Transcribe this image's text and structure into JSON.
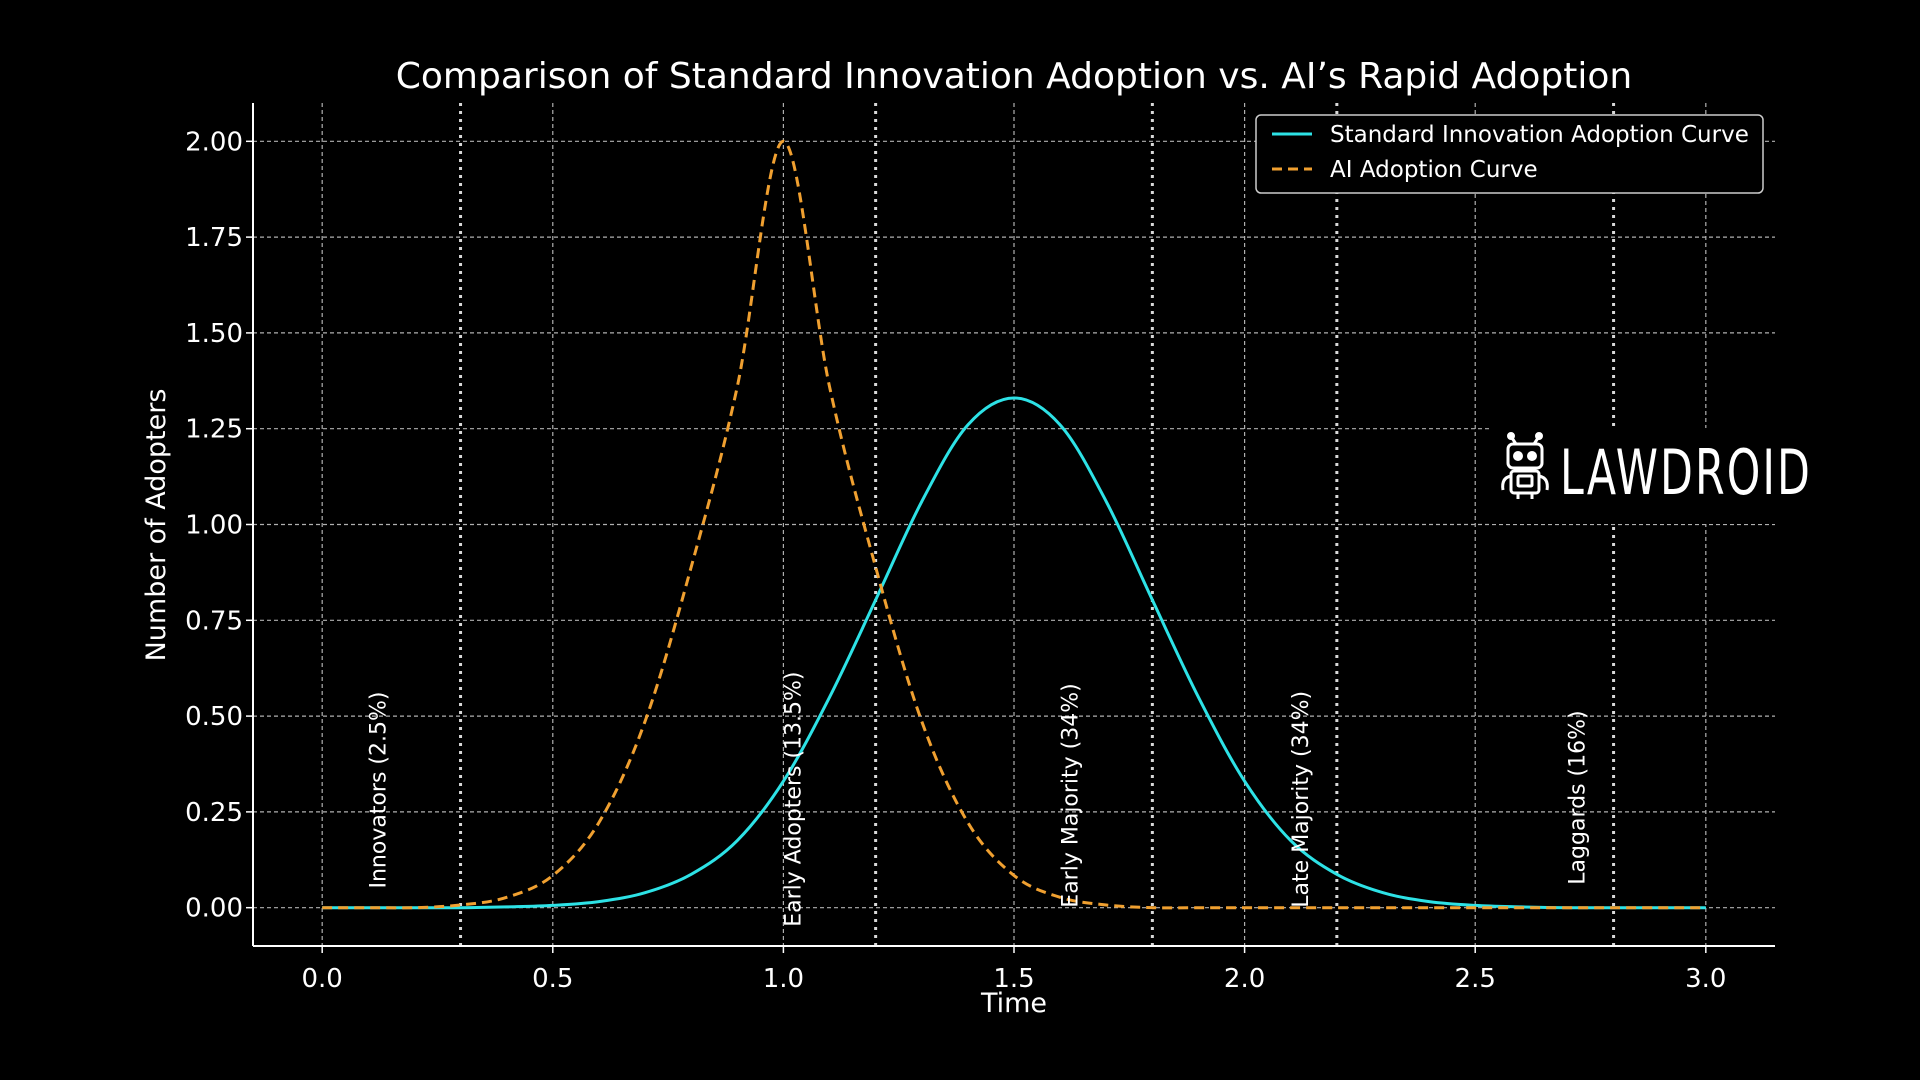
{
  "chart_data": {
    "type": "line",
    "title": "Comparison of Standard Innovation Adoption vs. AI’s Rapid Adoption",
    "xlabel": "Time",
    "ylabel": "Number of Adopters",
    "xlim": [
      -0.15,
      3.15
    ],
    "ylim": [
      -0.1,
      2.1
    ],
    "x_ticks": [
      "0.0",
      "0.5",
      "1.0",
      "1.5",
      "2.0",
      "2.5",
      "3.0"
    ],
    "x_tick_values": [
      0,
      0.5,
      1.0,
      1.5,
      2.0,
      2.5,
      3.0
    ],
    "y_ticks": [
      "0.00",
      "0.25",
      "0.50",
      "0.75",
      "1.00",
      "1.25",
      "1.50",
      "1.75",
      "2.00"
    ],
    "y_tick_values": [
      0,
      0.25,
      0.5,
      0.75,
      1.0,
      1.25,
      1.5,
      1.75,
      2.0
    ],
    "grid": true,
    "legend_position": "top-right",
    "series": [
      {
        "name": "Standard Innovation Adoption Curve",
        "color": "#2de2e6",
        "style": "solid",
        "x": [
          0,
          0.1,
          0.2,
          0.3,
          0.4,
          0.5,
          0.6,
          0.7,
          0.8,
          0.9,
          1.0,
          1.1,
          1.2,
          1.3,
          1.4,
          1.5,
          1.6,
          1.7,
          1.8,
          1.9,
          2.0,
          2.1,
          2.2,
          2.3,
          2.4,
          2.5,
          2.6,
          2.7,
          2.8,
          2.9,
          3.0
        ],
        "y": [
          0.0,
          0.0,
          0.0,
          0.0,
          0.002,
          0.006,
          0.016,
          0.039,
          0.087,
          0.175,
          0.33,
          0.549,
          0.803,
          1.06,
          1.26,
          1.33,
          1.26,
          1.06,
          0.803,
          0.549,
          0.33,
          0.175,
          0.087,
          0.039,
          0.016,
          0.006,
          0.002,
          0.0,
          0.0,
          0.0,
          0.0
        ]
      },
      {
        "name": "AI Adoption Curve",
        "color": "#f0a030",
        "style": "dashed",
        "x": [
          0,
          0.1,
          0.2,
          0.3,
          0.4,
          0.5,
          0.6,
          0.7,
          0.8,
          0.9,
          1.0,
          1.1,
          1.2,
          1.3,
          1.4,
          1.5,
          1.6,
          1.7,
          1.8,
          1.9,
          2.0,
          2.2,
          2.4,
          2.6,
          2.8,
          3.0
        ],
        "y": [
          0.0,
          0.0,
          0.0,
          0.007,
          0.027,
          0.084,
          0.222,
          0.486,
          0.889,
          1.36,
          2.0,
          1.36,
          0.889,
          0.486,
          0.222,
          0.084,
          0.027,
          0.007,
          0.0,
          0.0,
          0.0,
          0.0,
          0.0,
          0.0,
          0.0,
          0.0
        ]
      }
    ],
    "phase_lines": [
      0.3,
      1.2,
      1.8,
      2.2,
      2.8
    ],
    "phase_labels": [
      {
        "text": "Innovators (2.5%)",
        "x": 0.12,
        "y": 0.05
      },
      {
        "text": "Early Adopters (13.5%)",
        "x": 1.02,
        "y": -0.05
      },
      {
        "text": "Early Majority (34%)",
        "x": 1.62,
        "y": 0.0
      },
      {
        "text": "Late Majority (34%)",
        "x": 2.12,
        "y": 0.0
      },
      {
        "text": "Laggards (16%)",
        "x": 2.72,
        "y": 0.06
      }
    ]
  },
  "logo": {
    "text": "LAWDROID"
  },
  "colors": {
    "background": "#000000",
    "axis": "#ffffff",
    "grid": "#b0b0b0",
    "phase_line": "#d8d8d8"
  }
}
